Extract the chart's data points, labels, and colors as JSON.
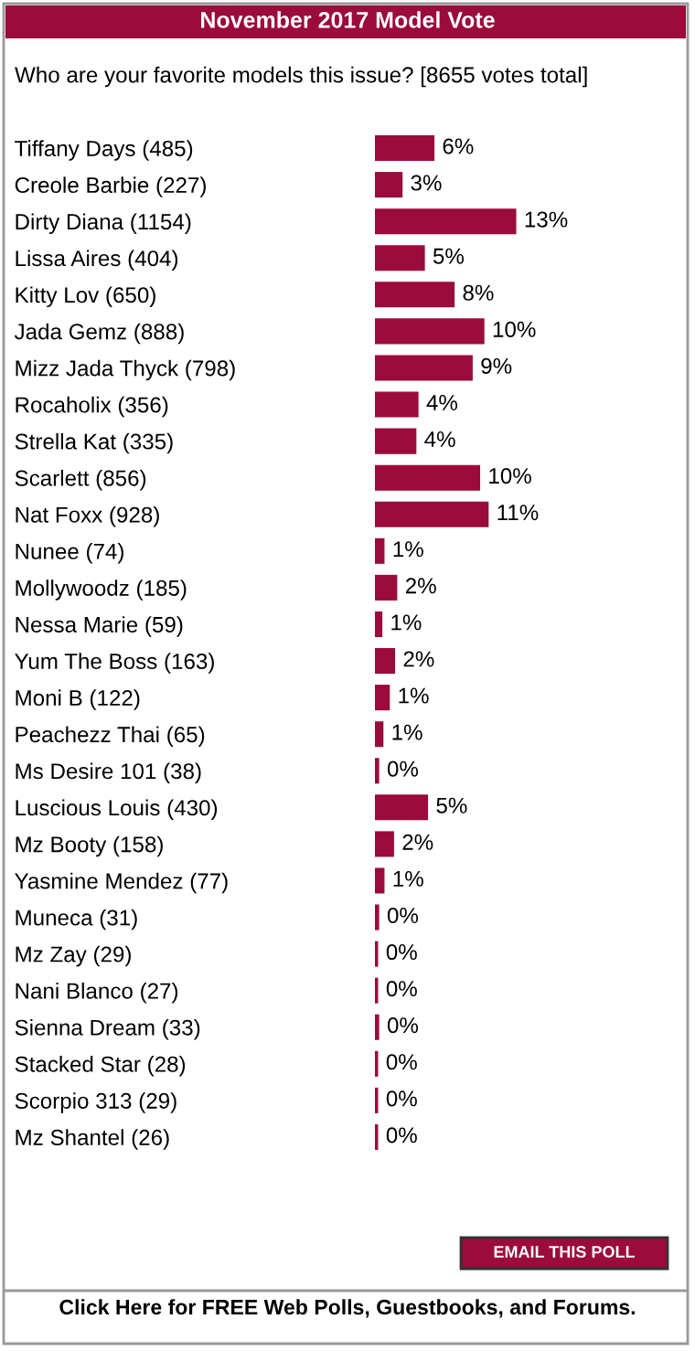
{
  "chart_data": {
    "type": "bar",
    "orientation": "horizontal",
    "title": "November 2017 Model Vote",
    "subtitle": "Who are your favorite models this issue? [8655 votes total]",
    "categories": [
      "Tiffany Days (485)",
      "Creole Barbie (227)",
      "Dirty Diana (1154)",
      "Lissa Aires (404)",
      "Kitty Lov (650)",
      "Jada Gemz (888)",
      "Mizz Jada Thyck (798)",
      "Rocaholix (356)",
      "Strella Kat (335)",
      "Scarlett (856)",
      "Nat Foxx (928)",
      "Nunee (74)",
      "Mollywoodz (185)",
      "Nessa Marie (59)",
      "Yum The Boss (163)",
      "Moni B (122)",
      "Peachezz Thai (65)",
      "Ms Desire 101 (38)",
      "Luscious Louis (430)",
      "Mz Booty (158)",
      "Yasmine Mendez (77)",
      "Muneca (31)",
      "Mz Zay (29)",
      "Nani Blanco (27)",
      "Sienna Dream (33)",
      "Stacked Star (28)",
      "Scorpio 313 (29)",
      "Mz Shantel (26)"
    ],
    "values": [
      5.6,
      2.6,
      13.3,
      4.7,
      7.5,
      10.3,
      9.2,
      4.1,
      3.9,
      9.9,
      10.7,
      0.9,
      2.1,
      0.7,
      1.9,
      1.4,
      0.8,
      0.4,
      5.0,
      1.8,
      0.9,
      0.4,
      0.3,
      0.3,
      0.4,
      0.3,
      0.3,
      0.3
    ],
    "value_labels": [
      "6%",
      "3%",
      "13%",
      "5%",
      "8%",
      "10%",
      "9%",
      "4%",
      "4%",
      "10%",
      "11%",
      "1%",
      "2%",
      "1%",
      "2%",
      "1%",
      "1%",
      "0%",
      "5%",
      "2%",
      "1%",
      "0%",
      "0%",
      "0%",
      "0%",
      "0%",
      "0%",
      "0%"
    ],
    "color": "#9b0b3b",
    "grid": false,
    "legend": false,
    "annotations": [
      "EMAIL THIS POLL",
      "Click Here for FREE Web Polls, Guestbooks, and Forums."
    ]
  }
}
